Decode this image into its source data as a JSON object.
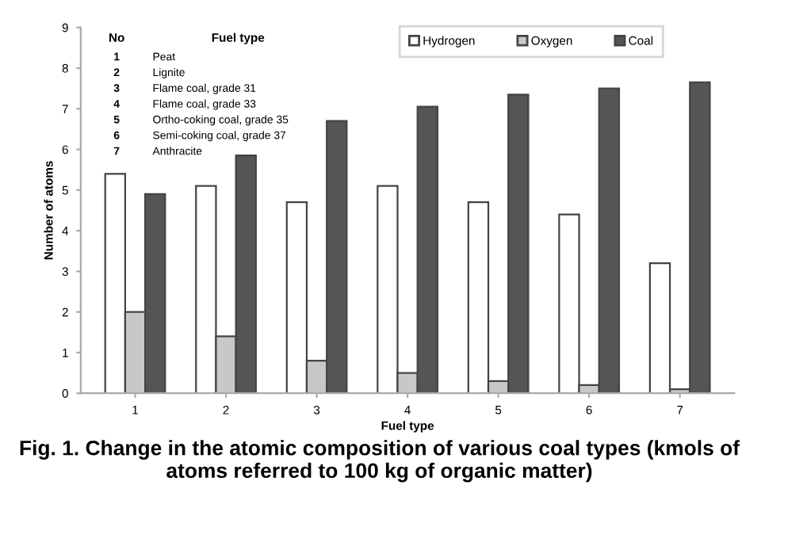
{
  "chart_data": {
    "type": "bar",
    "title": "Fig. 1. Change in the atomic composition of various coal types (kmols of atoms referred to 100 kg of organic matter)",
    "xlabel": "Fuel type",
    "ylabel": "Number of atoms",
    "categories": [
      "1",
      "2",
      "3",
      "4",
      "5",
      "6",
      "7"
    ],
    "series": [
      {
        "name": "Hydrogen",
        "color": "#ffffff",
        "values": [
          5.4,
          5.1,
          4.7,
          5.1,
          4.7,
          4.4,
          3.2
        ]
      },
      {
        "name": "Oxygen",
        "color": "#c8c8c8",
        "values": [
          2.0,
          1.4,
          0.8,
          0.5,
          0.3,
          0.2,
          0.1
        ]
      },
      {
        "name": "Coal",
        "color": "#555555",
        "values": [
          4.9,
          5.85,
          6.7,
          7.05,
          7.35,
          7.5,
          7.65
        ]
      }
    ],
    "ylim": [
      0,
      9
    ],
    "yticks": [
      0,
      1,
      2,
      3,
      4,
      5,
      6,
      7,
      8,
      9
    ],
    "grid": false,
    "legend": "top right",
    "annotations": [
      "No",
      "Fuel type",
      "1",
      "Peat",
      "2",
      "Lignite",
      "3",
      "Flame coal, grade 31",
      "4",
      "Flame coal, grade 33",
      "5",
      "Ortho-coking coal, grade 35",
      "6",
      "Semi-coking coal, grade 37",
      "7",
      "Anthracite"
    ]
  }
}
